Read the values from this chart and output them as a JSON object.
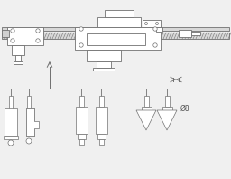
{
  "bg_color": "#f0f0f0",
  "line_color": "#707070",
  "text_color": "#555555",
  "phi_label": "Ø8",
  "fig_width": 2.56,
  "fig_height": 1.98,
  "dpi": 100
}
